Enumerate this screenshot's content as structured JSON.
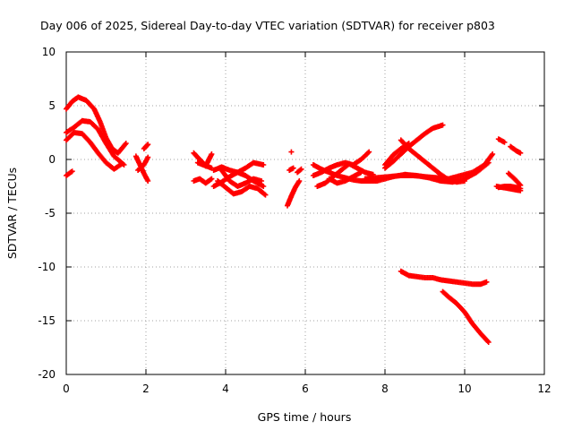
{
  "chart_data": {
    "type": "scatter",
    "title": "Day 006 of 2025, Sidereal Day-to-day VTEC variation (SDTVAR) for receiver p803",
    "xlabel": "GPS time / hours",
    "ylabel": "SDTVAR / TECUs",
    "xlim": [
      0,
      12
    ],
    "ylim": [
      -20,
      10
    ],
    "x_ticks": [
      "0",
      "2",
      "4",
      "6",
      "8",
      "10",
      "12"
    ],
    "y_ticks": [
      "10",
      "5",
      "0",
      "-5",
      "-10",
      "-15",
      "-20"
    ],
    "grid": true,
    "marker": "+",
    "color": "#ff0000",
    "series": [
      {
        "name": "arc1",
        "x": [
          0.0,
          0.15,
          0.3,
          0.5,
          0.7,
          0.85,
          1.0,
          1.15,
          1.3,
          1.5
        ],
        "y": [
          4.7,
          5.4,
          5.8,
          5.5,
          4.7,
          3.5,
          2.0,
          1.0,
          0.6,
          1.5
        ]
      },
      {
        "name": "arc2",
        "x": [
          0.0,
          0.2,
          0.4,
          0.6,
          0.8,
          1.0,
          1.2,
          1.45
        ],
        "y": [
          2.5,
          3.0,
          3.6,
          3.5,
          2.8,
          1.5,
          0.3,
          -0.5
        ]
      },
      {
        "name": "arc3",
        "x": [
          0.0,
          0.2,
          0.4,
          0.6,
          0.8,
          1.0,
          1.2,
          1.4
        ],
        "y": [
          1.8,
          2.5,
          2.4,
          1.6,
          0.6,
          -0.3,
          -0.9,
          -0.4
        ]
      },
      {
        "name": "arc4",
        "x": [
          0.0,
          0.15
        ],
        "y": [
          -1.5,
          -1.1
        ]
      },
      {
        "name": "arc5",
        "x": [
          1.75,
          1.85,
          1.95,
          2.05
        ],
        "y": [
          0.3,
          -0.5,
          -1.3,
          -2.0
        ]
      },
      {
        "name": "arc6",
        "x": [
          1.8,
          1.95,
          2.05
        ],
        "y": [
          -1.0,
          -0.5,
          0.2
        ]
      },
      {
        "name": "arc7",
        "x": [
          1.95,
          2.05
        ],
        "y": [
          1.0,
          1.4
        ]
      },
      {
        "name": "arc8",
        "x": [
          3.2,
          3.35,
          3.5,
          3.65
        ],
        "y": [
          0.6,
          0.0,
          -0.6,
          -0.8
        ]
      },
      {
        "name": "arc9",
        "x": [
          3.3,
          3.5,
          3.65
        ],
        "y": [
          -0.3,
          -0.6,
          0.5
        ]
      },
      {
        "name": "arc10",
        "x": [
          3.2,
          3.35,
          3.5,
          3.65
        ],
        "y": [
          -2.0,
          -1.8,
          -2.2,
          -1.8
        ]
      },
      {
        "name": "arc11",
        "x": [
          3.7,
          3.9,
          4.1,
          4.3,
          4.5,
          4.7,
          4.95
        ],
        "y": [
          -1.0,
          -0.7,
          -1.0,
          -1.2,
          -0.8,
          -0.3,
          -0.5
        ]
      },
      {
        "name": "arc12",
        "x": [
          3.7,
          3.9,
          4.1,
          4.3,
          4.5,
          4.7,
          4.95
        ],
        "y": [
          -2.5,
          -2.1,
          -1.6,
          -1.2,
          -1.5,
          -2.0,
          -2.5
        ]
      },
      {
        "name": "arc13",
        "x": [
          3.8,
          4.0,
          4.2,
          4.4,
          4.6,
          4.8,
          5.0
        ],
        "y": [
          -2.0,
          -2.6,
          -3.2,
          -3.0,
          -2.5,
          -2.7,
          -3.3
        ]
      },
      {
        "name": "arc14",
        "x": [
          3.9,
          4.1,
          4.3,
          4.5,
          4.7,
          4.9
        ],
        "y": [
          -1.0,
          -2.0,
          -2.5,
          -2.2,
          -1.8,
          -2.0
        ]
      },
      {
        "name": "arc15",
        "x": [
          5.55,
          5.65,
          5.75,
          5.85
        ],
        "y": [
          -4.3,
          -3.4,
          -2.6,
          -2.0
        ]
      },
      {
        "name": "arc16",
        "x": [
          5.6,
          5.7
        ],
        "y": [
          -1.0,
          -0.8
        ]
      },
      {
        "name": "arc17",
        "x": [
          5.65
        ],
        "y": [
          0.7
        ]
      },
      {
        "name": "arc18",
        "x": [
          5.8,
          5.9
        ],
        "y": [
          -1.2,
          -0.9
        ]
      },
      {
        "name": "arc19",
        "x": [
          6.2,
          6.4,
          6.6,
          6.8,
          7.0,
          7.2,
          7.4,
          7.6
        ],
        "y": [
          -1.5,
          -1.2,
          -0.8,
          -0.5,
          -0.3,
          -0.5,
          0.0,
          0.7
        ]
      },
      {
        "name": "arc20",
        "x": [
          6.2,
          6.4,
          6.6,
          6.8,
          7.0,
          7.2,
          7.4,
          7.6,
          7.8,
          8.0,
          8.2,
          8.5,
          8.8,
          9.1,
          9.4,
          9.7,
          10.0,
          10.3,
          10.6
        ],
        "y": [
          -0.5,
          -0.9,
          -1.2,
          -1.5,
          -1.7,
          -1.9,
          -2.0,
          -2.0,
          -2.0,
          -1.8,
          -1.6,
          -1.4,
          -1.5,
          -1.7,
          -2.0,
          -2.1,
          -1.8,
          -1.2,
          -0.3
        ]
      },
      {
        "name": "arc21",
        "x": [
          6.3,
          6.5,
          6.7,
          6.9,
          7.1,
          7.3,
          7.5,
          7.7
        ],
        "y": [
          -2.5,
          -2.2,
          -1.6,
          -1.0,
          -0.4,
          -0.8,
          -1.2,
          -1.4
        ]
      },
      {
        "name": "arc22",
        "x": [
          6.6,
          6.8,
          7.0,
          7.2,
          7.4
        ],
        "y": [
          -1.8,
          -2.2,
          -2.0,
          -1.6,
          -1.2
        ]
      },
      {
        "name": "arc23",
        "x": [
          7.5,
          7.8,
          8.1,
          8.4,
          8.7,
          9.0,
          9.3,
          9.6,
          9.9,
          10.2,
          10.5,
          10.7
        ],
        "y": [
          -1.8,
          -1.7,
          -1.6,
          -1.5,
          -1.5,
          -1.6,
          -1.7,
          -1.8,
          -1.5,
          -1.2,
          -0.5,
          0.5
        ]
      },
      {
        "name": "arc24",
        "x": [
          8.0,
          8.2,
          8.4,
          8.6,
          8.8,
          9.0,
          9.2,
          9.45
        ],
        "y": [
          -0.8,
          -0.2,
          0.5,
          1.2,
          1.8,
          2.4,
          2.9,
          3.2
        ]
      },
      {
        "name": "arc25",
        "x": [
          8.0,
          8.2,
          8.4,
          8.6
        ],
        "y": [
          -0.5,
          0.4,
          1.0,
          1.5
        ]
      },
      {
        "name": "arc26",
        "x": [
          8.4,
          8.6,
          8.8,
          9.0,
          9.2,
          9.4,
          9.6,
          9.8,
          10.0
        ],
        "y": [
          1.8,
          1.0,
          0.4,
          -0.2,
          -0.8,
          -1.4,
          -1.9,
          -2.1,
          -2.0
        ]
      },
      {
        "name": "arc27",
        "x": [
          8.4,
          8.6,
          8.8,
          9.0,
          9.2,
          9.4,
          9.6,
          9.8,
          10.0,
          10.2,
          10.4,
          10.55
        ],
        "y": [
          -10.4,
          -10.8,
          -10.9,
          -11.0,
          -11.0,
          -11.2,
          -11.3,
          -11.4,
          -11.5,
          -11.6,
          -11.6,
          -11.4
        ]
      },
      {
        "name": "arc28",
        "x": [
          9.45,
          9.6,
          9.8,
          10.0,
          10.2,
          10.4,
          10.6
        ],
        "y": [
          -12.3,
          -12.8,
          -13.4,
          -14.2,
          -15.3,
          -16.2,
          -17.0
        ]
      },
      {
        "name": "arc29",
        "x": [
          10.8,
          10.95,
          11.1,
          11.25,
          11.4
        ],
        "y": [
          -2.5,
          -2.6,
          -2.7,
          -2.8,
          -2.9
        ]
      },
      {
        "name": "arc30",
        "x": [
          10.85,
          11.0,
          11.15,
          11.3,
          11.4
        ],
        "y": [
          -2.6,
          -2.5,
          -2.5,
          -2.6,
          -2.7
        ]
      },
      {
        "name": "arc31",
        "x": [
          10.85,
          11.0
        ],
        "y": [
          1.9,
          1.6
        ]
      },
      {
        "name": "arc32",
        "x": [
          11.15,
          11.3,
          11.4
        ],
        "y": [
          1.2,
          0.8,
          0.6
        ]
      },
      {
        "name": "arc33",
        "x": [
          11.1,
          11.25,
          11.4
        ],
        "y": [
          -1.3,
          -1.8,
          -2.4
        ]
      }
    ]
  }
}
